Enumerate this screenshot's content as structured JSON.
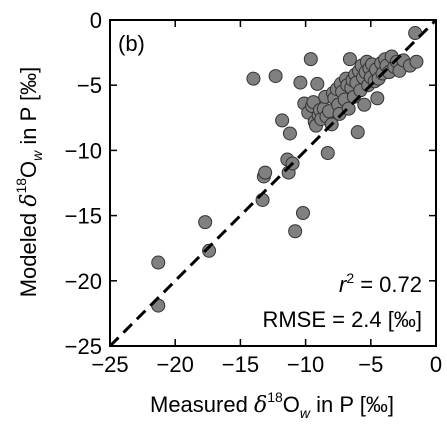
{
  "chart_data": {
    "type": "scatter",
    "panel_label": "(b)",
    "xlabel": {
      "pre": "Measured ",
      "delta": "δ",
      "sup": "18",
      "O": "O",
      "sub": "w",
      "post": " in P [‰]"
    },
    "ylabel": {
      "pre": "Modeled ",
      "delta": "δ",
      "sup": "18",
      "O": "O",
      "sub": "w",
      "post": " in P [‰]"
    },
    "xlim": [
      -25,
      0
    ],
    "ylim": [
      -25,
      0
    ],
    "xticks": [
      -25,
      -20,
      -15,
      -10,
      -5,
      0
    ],
    "yticks": [
      -25,
      -20,
      -15,
      -10,
      -5,
      0
    ],
    "xtick_labels": [
      "−25",
      "−20",
      "−15",
      "−10",
      "−5",
      "0"
    ],
    "ytick_labels": [
      "−25",
      "−20",
      "−15",
      "−10",
      "−5",
      "0"
    ],
    "grid": false,
    "one_to_one_line": true,
    "annotation_r2": {
      "r": "r",
      "sup": "2",
      "rest": " = 0.72"
    },
    "annotation_rmse": "RMSE = 2.4 [‰]",
    "marker_color": "#808080",
    "marker_edge": "#333333",
    "points": [
      {
        "x": -21.3,
        "y": -18.6
      },
      {
        "x": -21.3,
        "y": -21.9
      },
      {
        "x": -17.7,
        "y": -15.5
      },
      {
        "x": -17.4,
        "y": -17.7
      },
      {
        "x": -14.0,
        "y": -4.5
      },
      {
        "x": -13.3,
        "y": -13.8
      },
      {
        "x": -13.2,
        "y": -12.0
      },
      {
        "x": -13.1,
        "y": -11.7
      },
      {
        "x": -12.3,
        "y": -4.3
      },
      {
        "x": -11.8,
        "y": -7.7
      },
      {
        "x": -11.4,
        "y": -10.7
      },
      {
        "x": -11.3,
        "y": -11.7
      },
      {
        "x": -11.2,
        "y": -8.7
      },
      {
        "x": -11.0,
        "y": -11.0
      },
      {
        "x": -10.8,
        "y": -16.2
      },
      {
        "x": -10.4,
        "y": -4.8
      },
      {
        "x": -10.2,
        "y": -14.8
      },
      {
        "x": -10.1,
        "y": -6.4
      },
      {
        "x": -9.8,
        "y": -7.1
      },
      {
        "x": -9.6,
        "y": -3.0
      },
      {
        "x": -9.5,
        "y": -6.6
      },
      {
        "x": -9.4,
        "y": -6.3
      },
      {
        "x": -9.3,
        "y": -7.8
      },
      {
        "x": -9.2,
        "y": -8.1
      },
      {
        "x": -9.1,
        "y": -4.9
      },
      {
        "x": -9.0,
        "y": -7.3
      },
      {
        "x": -8.9,
        "y": -6.9
      },
      {
        "x": -8.8,
        "y": -7.6
      },
      {
        "x": -8.6,
        "y": -6.8
      },
      {
        "x": -8.5,
        "y": -5.9
      },
      {
        "x": -8.4,
        "y": -7.4
      },
      {
        "x": -8.3,
        "y": -10.2
      },
      {
        "x": -8.2,
        "y": -7.0
      },
      {
        "x": -8.0,
        "y": -8.0
      },
      {
        "x": -7.9,
        "y": -5.6
      },
      {
        "x": -7.8,
        "y": -6.0
      },
      {
        "x": -7.6,
        "y": -5.3
      },
      {
        "x": -7.5,
        "y": -6.5
      },
      {
        "x": -7.4,
        "y": -7.2
      },
      {
        "x": -7.3,
        "y": -4.9
      },
      {
        "x": -7.2,
        "y": -5.5
      },
      {
        "x": -7.0,
        "y": -6.1
      },
      {
        "x": -6.9,
        "y": -4.5
      },
      {
        "x": -6.8,
        "y": -5.0
      },
      {
        "x": -6.7,
        "y": -6.8
      },
      {
        "x": -6.6,
        "y": -3.0
      },
      {
        "x": -6.5,
        "y": -5.2
      },
      {
        "x": -6.4,
        "y": -4.6
      },
      {
        "x": -6.3,
        "y": -5.9
      },
      {
        "x": -6.2,
        "y": -4.2
      },
      {
        "x": -6.1,
        "y": -4.8
      },
      {
        "x": -6.0,
        "y": -8.6
      },
      {
        "x": -5.9,
        "y": -3.9
      },
      {
        "x": -5.8,
        "y": -5.4
      },
      {
        "x": -5.7,
        "y": -3.5
      },
      {
        "x": -5.6,
        "y": -4.4
      },
      {
        "x": -5.5,
        "y": -6.5
      },
      {
        "x": -5.4,
        "y": -4.0
      },
      {
        "x": -5.3,
        "y": -3.2
      },
      {
        "x": -5.2,
        "y": -5.0
      },
      {
        "x": -5.1,
        "y": -3.7
      },
      {
        "x": -5.0,
        "y": -4.4
      },
      {
        "x": -4.9,
        "y": -3.4
      },
      {
        "x": -4.7,
        "y": -4.7
      },
      {
        "x": -4.6,
        "y": -3.8
      },
      {
        "x": -4.5,
        "y": -6.0
      },
      {
        "x": -4.4,
        "y": -4.5
      },
      {
        "x": -4.2,
        "y": -3.3
      },
      {
        "x": -4.1,
        "y": -4.1
      },
      {
        "x": -3.9,
        "y": -3.0
      },
      {
        "x": -3.8,
        "y": -3.5
      },
      {
        "x": -3.6,
        "y": -4.0
      },
      {
        "x": -3.4,
        "y": -2.8
      },
      {
        "x": -3.2,
        "y": -3.6
      },
      {
        "x": -3.0,
        "y": -3.2
      },
      {
        "x": -2.8,
        "y": -3.9
      },
      {
        "x": -2.5,
        "y": -3.1
      },
      {
        "x": -2.0,
        "y": -3.5
      },
      {
        "x": -1.6,
        "y": -1.0
      },
      {
        "x": -1.5,
        "y": -3.2
      }
    ]
  }
}
